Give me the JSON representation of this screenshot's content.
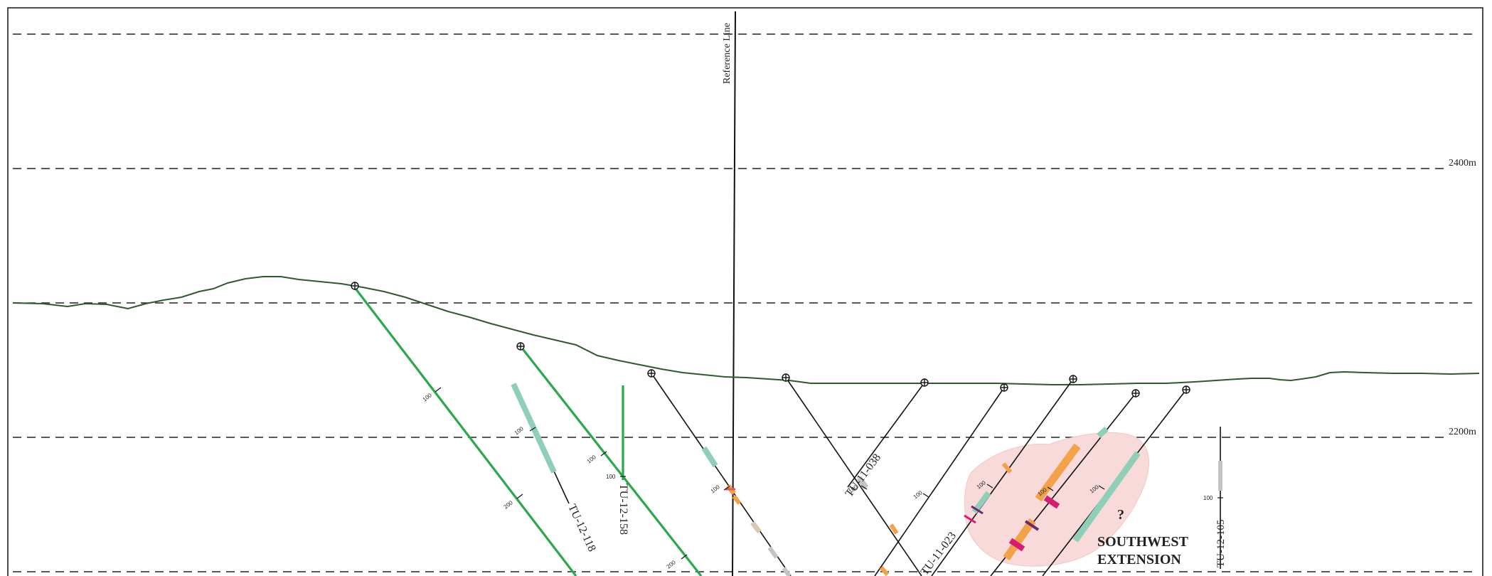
{
  "figure": {
    "reference_line_label": "Reference Line",
    "elevation_labels": [
      {
        "id": "el-2400",
        "text": "2400m"
      },
      {
        "id": "el-2200",
        "text": "2200m"
      }
    ],
    "zone": {
      "question": "?",
      "title_line1": "SOUTHWEST",
      "title_line2": "EXTENSION"
    },
    "drillholes": [
      {
        "id": "tu-12-118",
        "label": "TU-12-118",
        "ticks": [
          "100",
          "200"
        ]
      },
      {
        "id": "tu-12-118b",
        "label": "",
        "ticks": [
          "100",
          "200"
        ]
      },
      {
        "id": "tu-12-158",
        "label": "TU-12-158",
        "ticks": [
          "100"
        ]
      },
      {
        "id": "hole-4",
        "label": "",
        "ticks": [
          "100"
        ]
      },
      {
        "id": "tu-11-038",
        "label": "TU-11-038",
        "ticks": [
          "100"
        ]
      },
      {
        "id": "tu-11-023",
        "label": "TU-11-023",
        "ticks": [
          "100"
        ]
      },
      {
        "id": "hole-7",
        "label": "",
        "ticks": [
          "100"
        ]
      },
      {
        "id": "hole-8",
        "label": "",
        "ticks": [
          "100"
        ]
      },
      {
        "id": "tu-12-105",
        "label": "TU-12-105",
        "ticks": [
          "100"
        ]
      }
    ],
    "colors": {
      "topography": "#2e5a2e",
      "planned_hole": "#2aa84a",
      "drilled_hole": "#111111",
      "intercept_teal": "#8fcfb8",
      "intercept_orange": "#f4a24a",
      "intercept_magenta": "#d81b72",
      "intercept_purple": "#6b2a6e",
      "intercept_gray": "#c4c4c4",
      "zone_fill": "#f9dada"
    }
  }
}
